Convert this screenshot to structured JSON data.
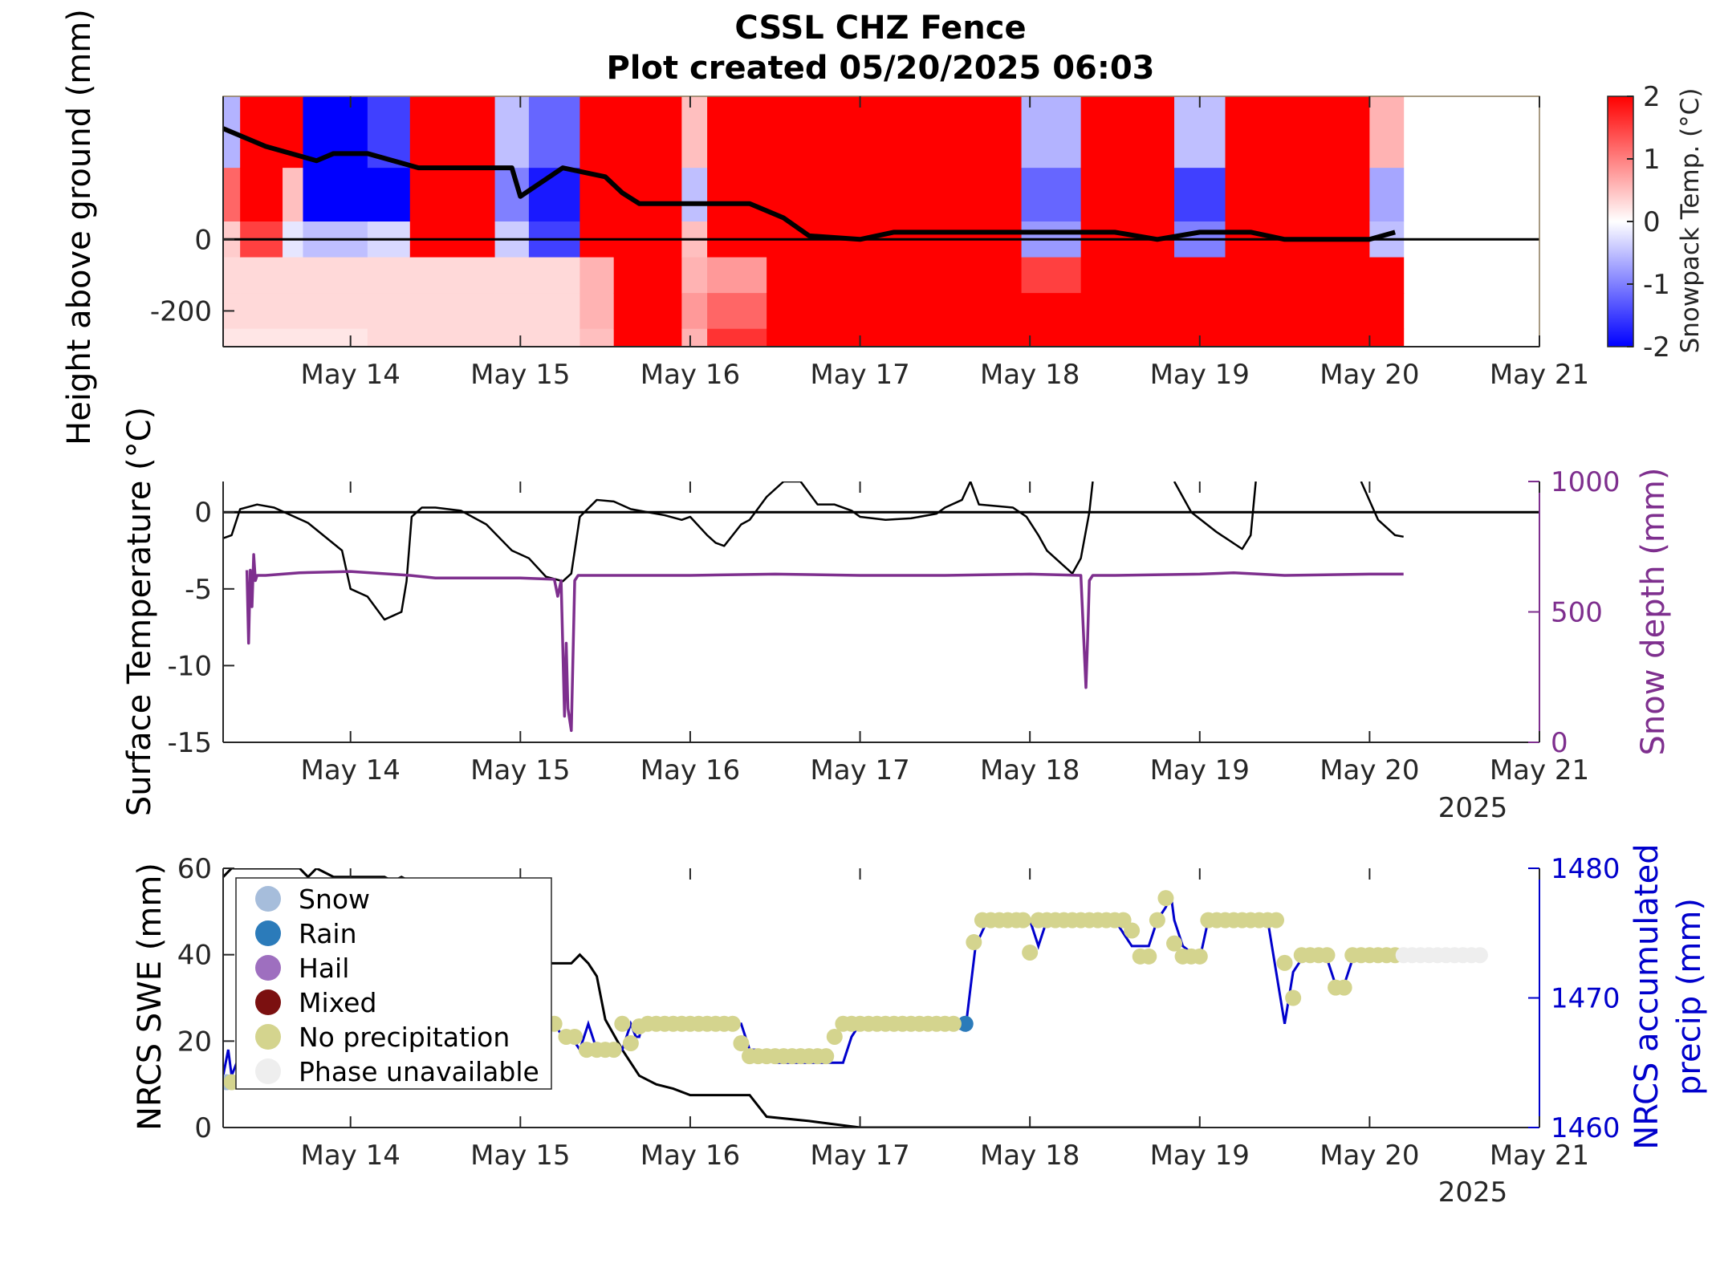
{
  "chart_data": [
    {
      "type": "heatmap",
      "title": "CSSL CHZ Fence",
      "subtitle": "Plot created 05/20/2025 06:03",
      "ylabel": "Height above ground (mm)",
      "xlim": [
        "2025-05-13 06:00",
        "2025-05-21 00:00"
      ],
      "ylim": [
        -300,
        400
      ],
      "x_ticks": [
        "May 14",
        "May 15",
        "May 16",
        "May 17",
        "May 18",
        "May 19",
        "May 20",
        "May 21"
      ],
      "y_ticks": [
        "0",
        "-200"
      ],
      "colorbar": {
        "label": "Snowpack Temp. (°C)",
        "range": [
          -2,
          2
        ],
        "ticks": [
          "2",
          "1",
          "0",
          "-1",
          "-2"
        ],
        "colors": [
          "#0000ff",
          "#ffffff",
          "#ff0000"
        ]
      },
      "sensor_rows_mm": [
        300,
        100,
        0,
        -100,
        -200,
        -300
      ],
      "columns": [
        {
          "start": 13.25,
          "end": 13.35,
          "temps": [
            -0.6,
            1.2,
            0.4,
            0.3,
            0.3,
            0.2
          ]
        },
        {
          "start": 13.35,
          "end": 13.6,
          "temps": [
            2.0,
            2.0,
            1.5,
            0.3,
            0.3,
            0.2
          ]
        },
        {
          "start": 13.6,
          "end": 13.72,
          "temps": [
            2.0,
            0.5,
            -0.2,
            0.3,
            0.3,
            0.2
          ]
        },
        {
          "start": 13.72,
          "end": 14.1,
          "temps": [
            -2.0,
            -2.0,
            -0.5,
            0.3,
            0.3,
            0.2
          ]
        },
        {
          "start": 14.1,
          "end": 14.35,
          "temps": [
            -1.5,
            -2.0,
            -0.3,
            0.3,
            0.3,
            0.3
          ]
        },
        {
          "start": 14.35,
          "end": 14.85,
          "temps": [
            2.0,
            2.0,
            2.0,
            0.3,
            0.3,
            0.3
          ]
        },
        {
          "start": 14.85,
          "end": 15.05,
          "temps": [
            -0.5,
            -1.0,
            -0.4,
            0.3,
            0.3,
            0.3
          ]
        },
        {
          "start": 15.05,
          "end": 15.35,
          "temps": [
            -1.2,
            -1.8,
            -1.5,
            0.3,
            0.3,
            0.3
          ]
        },
        {
          "start": 15.35,
          "end": 15.55,
          "temps": [
            2.0,
            2.0,
            2.0,
            0.6,
            0.6,
            0.5
          ]
        },
        {
          "start": 15.55,
          "end": 15.95,
          "temps": [
            2.0,
            2.0,
            2.0,
            2.0,
            2.0,
            2.0
          ]
        },
        {
          "start": 15.95,
          "end": 16.1,
          "temps": [
            0.5,
            -0.5,
            0.5,
            0.6,
            0.8,
            0.6
          ]
        },
        {
          "start": 16.1,
          "end": 16.45,
          "temps": [
            2.0,
            2.0,
            2.0,
            0.8,
            1.2,
            1.6
          ]
        },
        {
          "start": 16.45,
          "end": 17.95,
          "temps": [
            2.0,
            2.0,
            2.0,
            2.0,
            2.0,
            2.0
          ]
        },
        {
          "start": 17.95,
          "end": 18.3,
          "temps": [
            -0.6,
            -1.2,
            -0.8,
            1.5,
            2.0,
            2.0
          ]
        },
        {
          "start": 18.3,
          "end": 18.85,
          "temps": [
            2.0,
            2.0,
            2.0,
            2.0,
            2.0,
            2.0
          ]
        },
        {
          "start": 18.85,
          "end": 19.15,
          "temps": [
            -0.5,
            -1.5,
            -1.0,
            2.0,
            2.0,
            2.0
          ]
        },
        {
          "start": 19.15,
          "end": 20.0,
          "temps": [
            2.0,
            2.0,
            2.0,
            2.0,
            2.0,
            2.0
          ]
        },
        {
          "start": 20.0,
          "end": 20.2,
          "temps": [
            0.6,
            -0.7,
            -0.5,
            2.0,
            2.0,
            2.0
          ]
        }
      ],
      "snow_height_line": {
        "x": [
          13.25,
          13.35,
          13.5,
          13.8,
          13.9,
          14.1,
          14.4,
          14.7,
          14.95,
          15.0,
          15.25,
          15.5,
          15.6,
          15.7,
          16.0,
          16.1,
          16.35,
          16.55,
          16.7,
          17.0,
          17.2,
          17.5,
          17.95,
          18.1,
          18.5,
          18.75,
          19.0,
          19.3,
          19.5,
          19.7,
          20.0,
          20.15
        ],
        "y": [
          310,
          290,
          260,
          220,
          240,
          240,
          200,
          200,
          200,
          120,
          200,
          175,
          130,
          100,
          100,
          100,
          100,
          60,
          10,
          0,
          20,
          20,
          20,
          20,
          20,
          0,
          20,
          20,
          0,
          0,
          0,
          20
        ],
        "color": "#000000"
      }
    },
    {
      "type": "line",
      "ylabel": "Surface Temperature (°C)",
      "ylabel_right": "Snow depth (mm)",
      "xlim": [
        "2025-05-13 06:00",
        "2025-05-21 00:00"
      ],
      "ylim": [
        -15,
        2
      ],
      "ylim_right": [
        0,
        1000
      ],
      "x_ticks": [
        "May 14",
        "May 15",
        "May 16",
        "May 17",
        "May 18",
        "May 19",
        "May 20",
        "May 21"
      ],
      "x_year": "2025",
      "y_ticks": [
        "0",
        "-5",
        "-10",
        "-15"
      ],
      "y_ticks_right": [
        "1000",
        "500",
        "0"
      ],
      "series": [
        {
          "axis": "left",
          "color": "#000000",
          "x": [
            13.25,
            13.3,
            13.35,
            13.45,
            13.55,
            13.75,
            13.95,
            14.0,
            14.1,
            14.2,
            14.3,
            14.33,
            14.36,
            14.42,
            14.5,
            14.65,
            14.8,
            14.95,
            15.05,
            15.15,
            15.25,
            15.3,
            15.35,
            15.45,
            15.55,
            15.65,
            15.75,
            15.85,
            15.95,
            16.0,
            16.1,
            16.15,
            16.2,
            16.3,
            16.35,
            16.45,
            16.55,
            16.65,
            16.75,
            16.85,
            16.95,
            17.0,
            17.15,
            17.3,
            17.45,
            17.5,
            17.6,
            17.65,
            17.7,
            17.9,
            17.98,
            18.05,
            18.1,
            18.2,
            18.25,
            18.3,
            18.35,
            18.37
          ],
          "y": [
            -1.7,
            -1.5,
            0.2,
            0.5,
            0.3,
            -0.7,
            -2.5,
            -5.0,
            -5.5,
            -7.0,
            -6.5,
            -4.5,
            -0.3,
            0.3,
            0.3,
            0.1,
            -0.8,
            -2.5,
            -3.0,
            -4.2,
            -4.5,
            -4.0,
            -0.3,
            0.8,
            0.7,
            0.2,
            0.0,
            -0.2,
            -0.5,
            -0.3,
            -1.5,
            -2.0,
            -2.2,
            -0.8,
            -0.5,
            1.0,
            2.0,
            2.0,
            0.5,
            0.5,
            0.1,
            -0.3,
            -0.5,
            -0.4,
            -0.1,
            0.3,
            0.8,
            2.0,
            0.5,
            0.3,
            -0.3,
            -1.5,
            -2.5,
            -3.5,
            -4.0,
            -3.0,
            0.0,
            2.0
          ]
        },
        {
          "axis": "left",
          "color": "#000000",
          "x": [
            18.85,
            18.95,
            19.1,
            19.25,
            19.3,
            19.33
          ],
          "y": [
            2.0,
            0.0,
            -1.3,
            -2.4,
            -1.5,
            2.0
          ]
        },
        {
          "axis": "left",
          "color": "#000000",
          "x": [
            19.95,
            20.05,
            20.1,
            20.15,
            20.2
          ],
          "y": [
            2.0,
            -0.5,
            -1.0,
            -1.5,
            -1.6
          ]
        },
        {
          "axis": "right",
          "color": "#7e2f8e",
          "x": [
            13.39,
            13.4,
            13.41,
            13.42,
            13.43,
            13.44,
            13.45,
            13.5,
            13.7,
            14.0,
            14.35,
            14.5,
            15.0,
            15.2,
            15.22,
            15.24,
            15.26,
            15.27,
            15.28,
            15.3,
            15.32,
            15.34,
            15.5,
            16.0,
            16.5,
            17.0,
            17.5,
            18.0,
            18.3,
            18.33,
            18.34,
            18.35,
            18.37,
            18.5,
            19.0,
            19.2,
            19.5,
            20.0,
            20.2
          ],
          "y": [
            660,
            380,
            660,
            520,
            720,
            620,
            640,
            640,
            650,
            655,
            640,
            630,
            630,
            625,
            560,
            620,
            100,
            380,
            130,
            45,
            620,
            640,
            640,
            640,
            645,
            640,
            640,
            645,
            640,
            210,
            400,
            620,
            640,
            640,
            645,
            650,
            640,
            645,
            645
          ]
        }
      ]
    },
    {
      "type": "scatter",
      "ylabel": "NRCS SWE (mm)",
      "ylabel_right": "NRCS accumulated precip (mm)",
      "xlim": [
        "2025-05-13 06:00",
        "2025-05-21 00:00"
      ],
      "ylim": [
        0,
        60
      ],
      "ylim_right": [
        1460,
        1480
      ],
      "x_ticks": [
        "May 14",
        "May 15",
        "May 16",
        "May 17",
        "May 18",
        "May 19",
        "May 20",
        "May 21"
      ],
      "x_year": "2025",
      "y_ticks": [
        "60",
        "40",
        "20",
        "0"
      ],
      "y_ticks_right": [
        "1480",
        "1470",
        "1460"
      ],
      "legend": {
        "placement": "top-left",
        "entries": [
          {
            "label": "Snow",
            "color": "#a6bddb"
          },
          {
            "label": "Rain",
            "color": "#2b7bba"
          },
          {
            "label": "Hail",
            "color": "#9e6fbf"
          },
          {
            "label": "Mixed",
            "color": "#7b1010"
          },
          {
            "label": "No precipitation",
            "color": "#d4d48e"
          },
          {
            "label": "Phase unavailable",
            "color": "#eeeeee"
          }
        ]
      },
      "swe_line": {
        "color": "#000000",
        "x": [
          13.25,
          13.3,
          13.7,
          13.75,
          13.8,
          13.9,
          14.2,
          14.25,
          14.3,
          14.35,
          15.0,
          15.3,
          15.35,
          15.4,
          15.45,
          15.5,
          15.6,
          15.7,
          15.8,
          15.9,
          16.0,
          16.1,
          16.2,
          16.3,
          16.35,
          16.45,
          16.7,
          17.0,
          17.5,
          18.0,
          18.5,
          19.0
        ],
        "y": [
          58,
          60,
          60,
          58,
          60,
          58,
          58,
          57,
          58,
          57,
          38,
          38,
          40,
          38,
          35,
          25,
          18,
          12,
          10,
          9,
          7.5,
          7.5,
          7.5,
          7.5,
          7.5,
          2.5,
          1.5,
          0,
          0,
          0,
          0,
          0
        ]
      },
      "precip_line": {
        "color": "#0000cc",
        "x": [
          13.25,
          13.28,
          13.3,
          13.33,
          13.37,
          15.2,
          15.25,
          15.3,
          15.35,
          15.4,
          15.45,
          15.5,
          15.6,
          15.65,
          15.68,
          15.7,
          15.72,
          15.75,
          15.8,
          16.0,
          16.3,
          16.35,
          16.4,
          16.5,
          16.9,
          16.95,
          17.0,
          17.5,
          17.62,
          17.68,
          17.75,
          18.0,
          18.05,
          18.1,
          18.5,
          18.55,
          18.6,
          18.7,
          18.75,
          18.8,
          18.83,
          18.85,
          18.9,
          19.0,
          19.05,
          19.4,
          19.45,
          19.5,
          19.55,
          19.6,
          19.75,
          19.8,
          19.85,
          19.9,
          20.15
        ],
        "y": [
          1464,
          1466,
          1464,
          1465,
          1464,
          1468,
          1467,
          1467,
          1466,
          1468,
          1466,
          1466,
          1466,
          1468,
          1467,
          1467,
          1468,
          1468,
          1468,
          1468,
          1468,
          1466,
          1466,
          1465,
          1465,
          1467,
          1468,
          1468,
          1467.5,
          1474,
          1476,
          1476,
          1474,
          1476,
          1476,
          1475,
          1474,
          1474,
          1476,
          1477,
          1478,
          1476,
          1474,
          1473,
          1476,
          1476,
          1472,
          1468,
          1472,
          1473,
          1473,
          1471,
          1471,
          1473,
          1473
        ]
      },
      "phase_points": [
        {
          "phase": "Snow",
          "x": [
            13.27
          ],
          "y": [
            1463.5
          ]
        },
        {
          "phase": "Rain",
          "x": [
            17.62
          ],
          "y": [
            1468
          ]
        },
        {
          "phase": "No precipitation",
          "x": [
            13.3,
            15.2,
            15.27,
            15.32,
            15.39,
            15.45,
            15.5,
            15.55,
            15.6,
            15.65,
            15.7,
            15.75,
            15.8,
            15.85,
            15.9,
            15.95,
            16.0,
            16.05,
            16.1,
            16.15,
            16.2,
            16.25,
            16.3,
            16.35,
            16.4,
            16.45,
            16.5,
            16.55,
            16.6,
            16.65,
            16.7,
            16.75,
            16.8,
            16.85,
            16.9,
            16.95,
            17.0,
            17.05,
            17.1,
            17.15,
            17.2,
            17.25,
            17.3,
            17.35,
            17.4,
            17.45,
            17.5,
            17.55,
            17.67,
            17.72,
            17.77,
            17.82,
            17.87,
            17.92,
            17.96,
            18.0,
            18.05,
            18.1,
            18.15,
            18.2,
            18.25,
            18.3,
            18.35,
            18.4,
            18.45,
            18.5,
            18.55,
            18.6,
            18.65,
            18.7,
            18.75,
            18.8,
            18.85,
            18.9,
            18.95,
            19.0,
            19.05,
            19.1,
            19.15,
            19.2,
            19.25,
            19.3,
            19.35,
            19.4,
            19.45,
            19.5,
            19.55,
            19.6,
            19.65,
            19.7,
            19.75,
            19.8,
            19.85,
            19.9,
            19.95,
            20.0,
            20.05,
            20.1,
            20.15
          ],
          "y": [
            1463.5,
            1468,
            1467,
            1467,
            1466,
            1466,
            1466,
            1466,
            1468,
            1466.5,
            1467.8,
            1468,
            1468,
            1468,
            1468,
            1468,
            1468,
            1468,
            1468,
            1468,
            1468,
            1468,
            1466.5,
            1465.5,
            1465.5,
            1465.5,
            1465.5,
            1465.5,
            1465.5,
            1465.5,
            1465.5,
            1465.5,
            1465.5,
            1467,
            1468,
            1468,
            1468,
            1468,
            1468,
            1468,
            1468,
            1468,
            1468,
            1468,
            1468,
            1468,
            1468,
            1468,
            1474.3,
            1476,
            1476,
            1476,
            1476,
            1476,
            1476,
            1473.5,
            1476,
            1476,
            1476,
            1476,
            1476,
            1476,
            1476,
            1476,
            1476,
            1476,
            1476,
            1475.2,
            1473.2,
            1473.2,
            1476,
            1477.7,
            1474.2,
            1473.2,
            1473.2,
            1473.2,
            1476,
            1476,
            1476,
            1476,
            1476,
            1476,
            1476,
            1476,
            1476,
            1472.7,
            1470,
            1473.3,
            1473.3,
            1473.3,
            1473.3,
            1470.8,
            1470.8,
            1473.3,
            1473.3,
            1473.3,
            1473.3,
            1473.3,
            1473.3
          ]
        },
        {
          "phase": "Phase unavailable",
          "x": [
            20.2,
            20.25,
            20.3,
            20.35,
            20.4,
            20.45,
            20.5,
            20.55,
            20.6,
            20.65
          ],
          "y": [
            1473.3,
            1473.3,
            1473.3,
            1473.3,
            1473.3,
            1473.3,
            1473.3,
            1473.3,
            1473.3,
            1473.3
          ]
        }
      ]
    }
  ]
}
